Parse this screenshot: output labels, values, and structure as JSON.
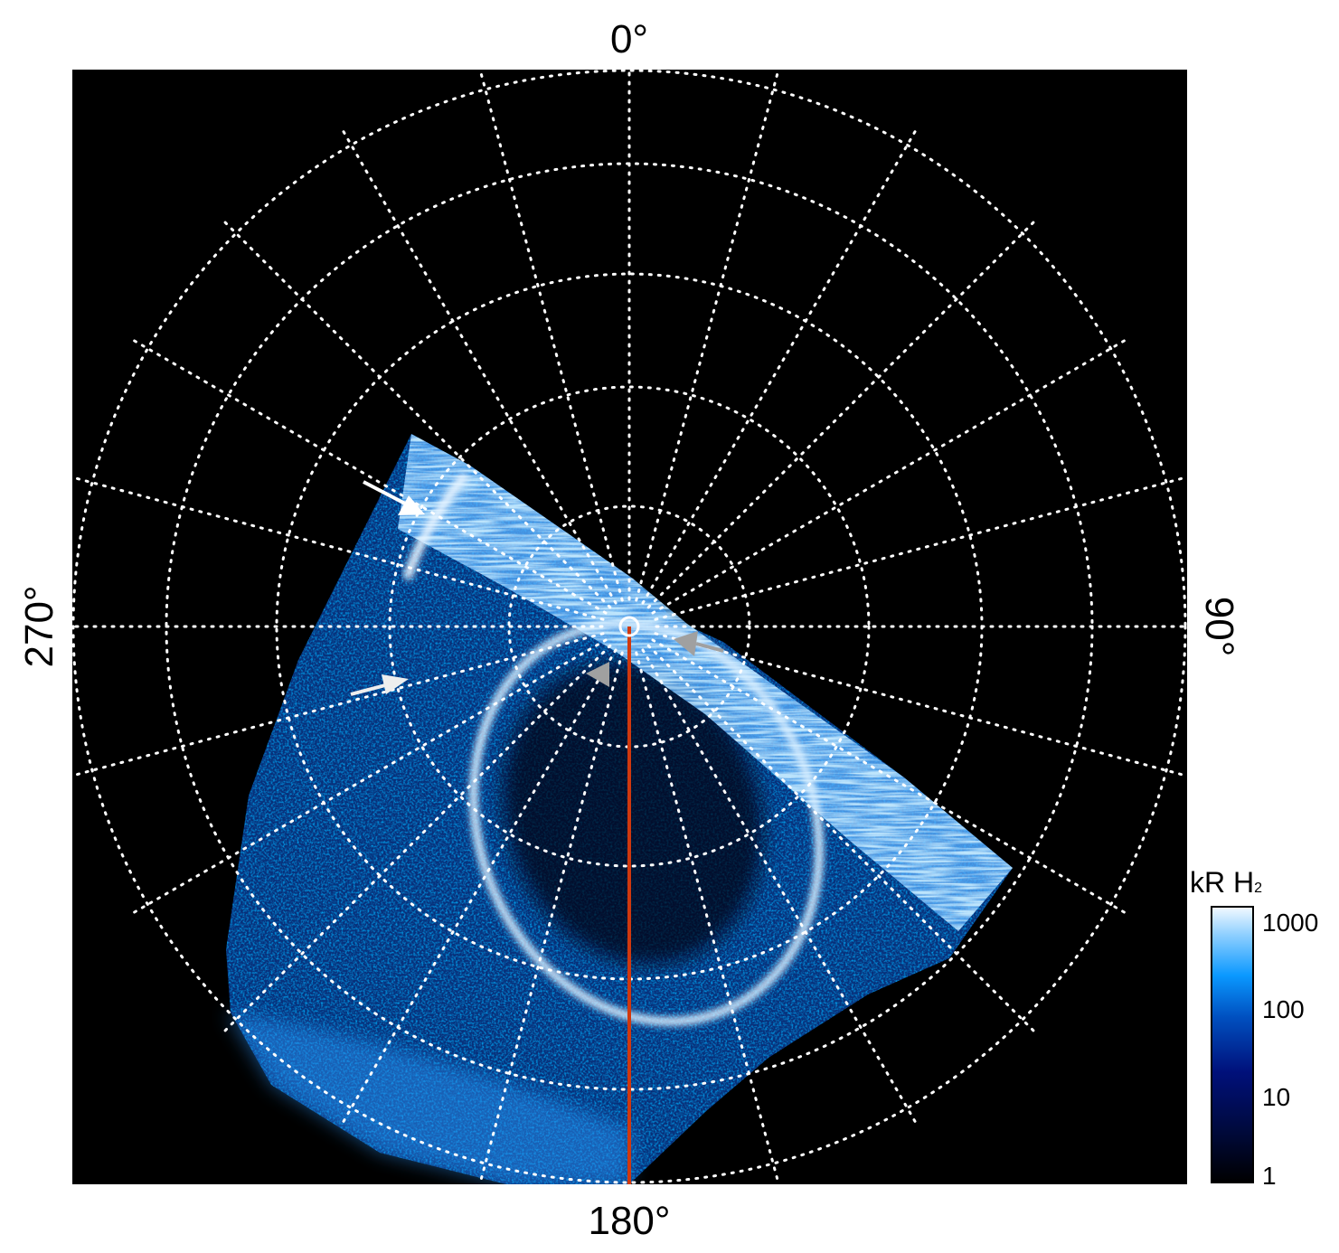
{
  "chart_data": {
    "type": "heatmap",
    "projection": "polar",
    "angle_labels": {
      "top": "0°",
      "right": "90°",
      "bottom": "180°",
      "left": "270°"
    },
    "angular_grid_step_deg": 15,
    "grid": true,
    "colorbar": {
      "label_main": "kR H",
      "label_sub": "2",
      "scale": "log",
      "range": [
        1,
        1000
      ],
      "ticks": [
        "1000",
        "100",
        "10",
        "1"
      ],
      "colors": [
        "#000000",
        "#000a50",
        "#0040b0",
        "#0a90ff",
        "#8cd0ff",
        "#ffffff"
      ],
      "placement": "bottom-right"
    },
    "annotations": {
      "white_arrows": 2,
      "gray_arrows": 2,
      "meridian_line_color": "#d0380e",
      "arrow_colors": {
        "white": "#ffffff",
        "gray": "#a0a0a0"
      }
    }
  }
}
